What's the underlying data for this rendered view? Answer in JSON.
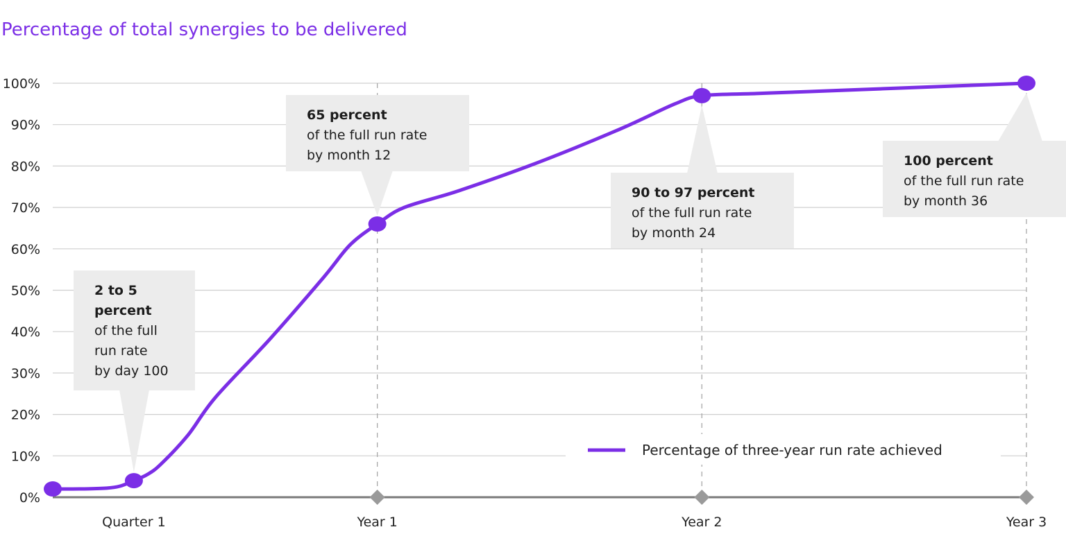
{
  "colors": {
    "accent": "#7b2ee6",
    "callout_bg": "#ececec",
    "grid": "#cfcfcf",
    "axis": "#7a7a7a",
    "marker": "#9a9a9a"
  },
  "chart_data": {
    "type": "line",
    "title": "Percentage of total synergies to be delivered",
    "xlabel": "",
    "ylabel": "",
    "xlim": [
      0,
      36
    ],
    "ylim": [
      0,
      100
    ],
    "y_ticks": [
      {
        "value": 0,
        "label": "0%"
      },
      {
        "value": 10,
        "label": "10%"
      },
      {
        "value": 20,
        "label": "20%"
      },
      {
        "value": 30,
        "label": "30%"
      },
      {
        "value": 40,
        "label": "40%"
      },
      {
        "value": 50,
        "label": "50%"
      },
      {
        "value": 60,
        "label": "60%"
      },
      {
        "value": 70,
        "label": "70%"
      },
      {
        "value": 80,
        "label": "80%"
      },
      {
        "value": 90,
        "label": "90%"
      },
      {
        "value": 100,
        "label": "100%"
      }
    ],
    "x_ticks": [
      {
        "value": 3,
        "label": "Quarter 1",
        "diamond": false
      },
      {
        "value": 12,
        "label": "Year 1",
        "diamond": true
      },
      {
        "value": 24,
        "label": "Year 2",
        "diamond": true
      },
      {
        "value": 36,
        "label": "Year 3",
        "diamond": true
      }
    ],
    "grid": true,
    "legend_position": "bottom-right",
    "series": [
      {
        "name": "Percentage of three-year run rate achieved",
        "curve": [
          {
            "x": 0,
            "y": 2
          },
          {
            "x": 1,
            "y": 2
          },
          {
            "x": 2,
            "y": 2.2
          },
          {
            "x": 2.5,
            "y": 2.7
          },
          {
            "x": 3,
            "y": 4
          },
          {
            "x": 3.5,
            "y": 5.5
          },
          {
            "x": 4,
            "y": 8
          },
          {
            "x": 5,
            "y": 15
          },
          {
            "x": 6,
            "y": 24
          },
          {
            "x": 8,
            "y": 38
          },
          {
            "x": 10,
            "y": 53
          },
          {
            "x": 11,
            "y": 61
          },
          {
            "x": 12,
            "y": 66
          },
          {
            "x": 13,
            "y": 70
          },
          {
            "x": 15,
            "y": 74
          },
          {
            "x": 18,
            "y": 81
          },
          {
            "x": 21,
            "y": 89
          },
          {
            "x": 23,
            "y": 95
          },
          {
            "x": 24,
            "y": 97
          },
          {
            "x": 26,
            "y": 97.5
          },
          {
            "x": 28,
            "y": 98
          },
          {
            "x": 32,
            "y": 99
          },
          {
            "x": 36,
            "y": 100
          }
        ],
        "points": [
          {
            "x": 0,
            "y": 2
          },
          {
            "x": 3,
            "y": 4
          },
          {
            "x": 12,
            "y": 66
          },
          {
            "x": 24,
            "y": 97
          },
          {
            "x": 36,
            "y": 100
          }
        ]
      }
    ],
    "annotations": [
      {
        "x": 3,
        "y": 4,
        "bold": [
          "2 to 5",
          "percent"
        ],
        "text": [
          "of the full",
          "run rate",
          "by day 100"
        ]
      },
      {
        "x": 12,
        "y": 66,
        "bold": [
          "65 percent"
        ],
        "text": [
          "of the full run rate",
          "by month 12"
        ]
      },
      {
        "x": 24,
        "y": 97,
        "bold": [
          "90 to 97 percent"
        ],
        "text": [
          "of the full run rate",
          "by month 24"
        ]
      },
      {
        "x": 36,
        "y": 100,
        "bold": [
          "100 percent"
        ],
        "text": [
          "of the full run rate",
          "by month 36"
        ]
      }
    ]
  }
}
